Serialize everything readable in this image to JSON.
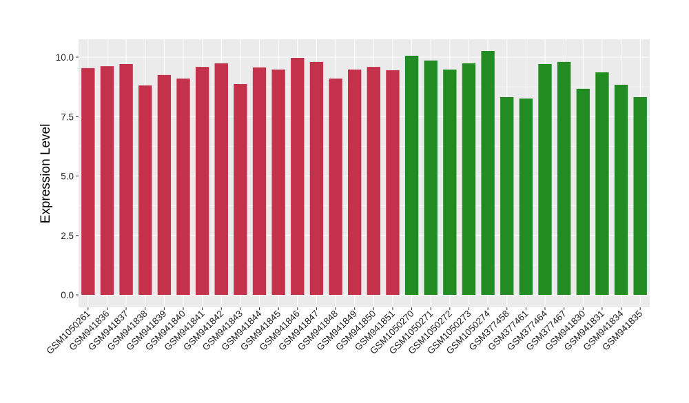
{
  "chart_data": {
    "type": "bar",
    "title": "",
    "xlabel": "",
    "ylabel": "Expression Level",
    "ylim": [
      -0.45,
      10.8
    ],
    "yticks": [
      0.0,
      2.5,
      5.0,
      7.5,
      10.0
    ],
    "ytick_labels": [
      "0.0",
      "2.5",
      "5.0",
      "7.5",
      "10.0"
    ],
    "grid": true,
    "legend": "none",
    "categories": [
      "GSM1050261",
      "GSM941836",
      "GSM941837",
      "GSM941838",
      "GSM941839",
      "GSM941840",
      "GSM941841",
      "GSM941842",
      "GSM941843",
      "GSM941844",
      "GSM941845",
      "GSM941846",
      "GSM941847",
      "GSM941848",
      "GSM941849",
      "GSM941850",
      "GSM941851",
      "GSM1050270",
      "GSM1050271",
      "GSM1050272",
      "GSM1050273",
      "GSM1050274",
      "GSM377458",
      "GSM377461",
      "GSM377464",
      "GSM377467",
      "GSM941830",
      "GSM941831",
      "GSM941834",
      "GSM941835"
    ],
    "values": [
      9.54,
      9.62,
      9.71,
      8.81,
      9.25,
      9.1,
      9.59,
      9.74,
      8.87,
      9.57,
      9.48,
      9.97,
      9.8,
      9.1,
      9.48,
      9.59,
      9.45,
      10.06,
      9.86,
      9.48,
      9.74,
      10.26,
      8.32,
      8.26,
      9.71,
      9.8,
      8.67,
      9.36,
      8.84,
      8.32
    ],
    "groups": [
      0,
      0,
      0,
      0,
      0,
      0,
      0,
      0,
      0,
      0,
      0,
      0,
      0,
      0,
      0,
      0,
      0,
      1,
      1,
      1,
      1,
      1,
      1,
      1,
      1,
      1,
      1,
      1,
      1,
      1
    ],
    "group_colors": [
      "#C3314A",
      "#228B22"
    ]
  }
}
